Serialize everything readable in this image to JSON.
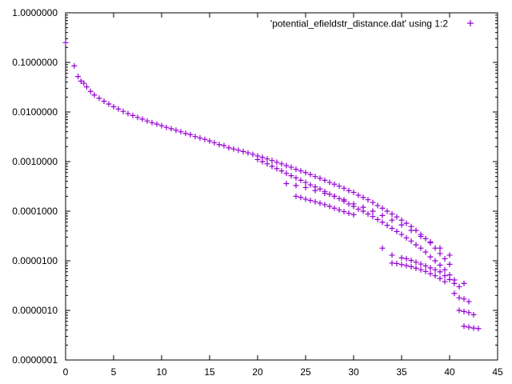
{
  "chart_data": {
    "type": "scatter",
    "title": "",
    "xlabel": "",
    "ylabel": "",
    "xlim": [
      0,
      45
    ],
    "ylim": [
      1e-07,
      1
    ],
    "yscale": "log",
    "grid": false,
    "legend_position": "top-right",
    "x_ticks": [
      "0",
      "5",
      "10",
      "15",
      "20",
      "25",
      "30",
      "35",
      "40",
      "45"
    ],
    "y_ticks": [
      "0.0000001",
      "0.0000010",
      "0.0000100",
      "0.0001000",
      "0.0010000",
      "0.0100000",
      "0.1000000",
      "1.0000000"
    ],
    "marker": "plus",
    "series": [
      {
        "name": "'potential_efieldstr_distance.dat' using 1:2",
        "color": "#9400d3",
        "points": [
          [
            0.0,
            0.25
          ],
          [
            0.9,
            0.085
          ],
          [
            1.3,
            0.052
          ],
          [
            1.6,
            0.042
          ],
          [
            1.9,
            0.038
          ],
          [
            2.2,
            0.032
          ],
          [
            2.6,
            0.026
          ],
          [
            3.0,
            0.022
          ],
          [
            3.5,
            0.019
          ],
          [
            4.0,
            0.0165
          ],
          [
            4.5,
            0.0145
          ],
          [
            5.0,
            0.0128
          ],
          [
            5.5,
            0.0115
          ],
          [
            6.0,
            0.0103
          ],
          [
            6.5,
            0.0093
          ],
          [
            7.0,
            0.0085
          ],
          [
            7.5,
            0.0078
          ],
          [
            8.0,
            0.0072
          ],
          [
            8.5,
            0.0066
          ],
          [
            9.0,
            0.0061
          ],
          [
            9.5,
            0.0057
          ],
          [
            10.0,
            0.0053
          ],
          [
            10.5,
            0.0049
          ],
          [
            11.0,
            0.0046
          ],
          [
            11.5,
            0.0043
          ],
          [
            12.0,
            0.004
          ],
          [
            12.5,
            0.0037
          ],
          [
            13.0,
            0.0035
          ],
          [
            13.5,
            0.0032
          ],
          [
            14.0,
            0.003
          ],
          [
            14.5,
            0.0028
          ],
          [
            15.0,
            0.0026
          ],
          [
            15.5,
            0.0024
          ],
          [
            16.0,
            0.0022
          ],
          [
            16.5,
            0.0021
          ],
          [
            17.0,
            0.0019
          ],
          [
            17.5,
            0.0018
          ],
          [
            18.0,
            0.0017
          ],
          [
            18.5,
            0.0016
          ],
          [
            19.0,
            0.0015
          ],
          [
            19.5,
            0.0014
          ],
          [
            20.0,
            0.0013
          ],
          [
            20.5,
            0.00122
          ],
          [
            21.0,
            0.00113
          ],
          [
            21.5,
            0.00105
          ],
          [
            22.0,
            0.00097
          ],
          [
            22.5,
            0.0009
          ],
          [
            23.0,
            0.00083
          ],
          [
            23.5,
            0.00077
          ],
          [
            24.0,
            0.0007
          ],
          [
            24.5,
            0.00065
          ],
          [
            25.0,
            0.0006
          ],
          [
            25.5,
            0.00055
          ],
          [
            26.0,
            0.0005
          ],
          [
            26.5,
            0.00046
          ],
          [
            27.0,
            0.00042
          ],
          [
            27.5,
            0.00038
          ],
          [
            28.0,
            0.00035
          ],
          [
            28.5,
            0.00032
          ],
          [
            29.0,
            0.00029
          ],
          [
            29.5,
            0.00026
          ],
          [
            30.0,
            0.00024
          ],
          [
            30.5,
            0.00021
          ],
          [
            31.0,
            0.00019
          ],
          [
            31.5,
            0.00017
          ],
          [
            32.0,
            0.00015
          ],
          [
            32.5,
            0.00013
          ],
          [
            33.0,
            0.000115
          ],
          [
            33.5,
            0.0001
          ],
          [
            34.0,
            8.8e-05
          ],
          [
            34.5,
            7.7e-05
          ],
          [
            35.0,
            6.6e-05
          ],
          [
            35.5,
            5.7e-05
          ],
          [
            36.0,
            4.9e-05
          ],
          [
            36.5,
            4.1e-05
          ],
          [
            37.0,
            3.4e-05
          ],
          [
            37.5,
            2.8e-05
          ],
          [
            38.0,
            2.3e-05
          ],
          [
            38.5,
            1.8e-05
          ],
          [
            39.0,
            1.4e-05
          ],
          [
            39.5,
            1.1e-05
          ],
          [
            40.0,
            8.5e-06
          ],
          [
            20.0,
            0.0011
          ],
          [
            20.5,
            0.001
          ],
          [
            21.0,
            0.0009
          ],
          [
            21.5,
            0.0008
          ],
          [
            22.0,
            0.00072
          ],
          [
            22.5,
            0.00065
          ],
          [
            23.0,
            0.00058
          ],
          [
            23.5,
            0.00052
          ],
          [
            24.0,
            0.00047
          ],
          [
            24.5,
            0.00042
          ],
          [
            25.0,
            0.00038
          ],
          [
            25.5,
            0.00034
          ],
          [
            26.0,
            0.00031
          ],
          [
            26.5,
            0.00028
          ],
          [
            27.0,
            0.00025
          ],
          [
            27.5,
            0.00022
          ],
          [
            28.0,
            0.0002
          ],
          [
            28.5,
            0.00018
          ],
          [
            29.0,
            0.00016
          ],
          [
            29.5,
            0.00014
          ],
          [
            30.0,
            0.000125
          ],
          [
            30.5,
            0.00011
          ],
          [
            31.0,
            0.0001
          ],
          [
            31.5,
            8.8e-05
          ],
          [
            32.0,
            7.8e-05
          ],
          [
            32.5,
            6.8e-05
          ],
          [
            33.0,
            6e-05
          ],
          [
            33.5,
            5.2e-05
          ],
          [
            34.0,
            4.5e-05
          ],
          [
            34.5,
            3.9e-05
          ],
          [
            35.0,
            3.4e-05
          ],
          [
            35.5,
            2.9e-05
          ],
          [
            36.0,
            2.5e-05
          ],
          [
            36.5,
            2.1e-05
          ],
          [
            37.0,
            1.8e-05
          ],
          [
            37.5,
            1.5e-05
          ],
          [
            38.0,
            1.2e-05
          ],
          [
            38.5,
            1e-05
          ],
          [
            39.0,
            8.2e-06
          ],
          [
            39.5,
            6.6e-06
          ],
          [
            40.0,
            5.2e-06
          ],
          [
            40.5,
            4.1e-06
          ],
          [
            23.0,
            0.00036
          ],
          [
            24.0,
            0.00033
          ],
          [
            25.0,
            0.0003
          ],
          [
            26.0,
            0.00026
          ],
          [
            27.0,
            0.00023
          ],
          [
            28.0,
            0.0002
          ],
          [
            29.0,
            0.00017
          ],
          [
            30.0,
            0.00014
          ],
          [
            31.0,
            0.00012
          ],
          [
            32.0,
            0.0001
          ],
          [
            33.0,
            8.2e-05
          ],
          [
            34.0,
            6.6e-05
          ],
          [
            35.0,
            5.3e-05
          ],
          [
            36.0,
            4.1e-05
          ],
          [
            37.0,
            3.1e-05
          ],
          [
            38.0,
            2.4e-05
          ],
          [
            39.0,
            1.8e-05
          ],
          [
            40.0,
            1.3e-05
          ],
          [
            24.0,
            0.0002
          ],
          [
            24.5,
            0.00019
          ],
          [
            25.0,
            0.000175
          ],
          [
            25.5,
            0.000165
          ],
          [
            26.0,
            0.000155
          ],
          [
            26.5,
            0.000145
          ],
          [
            27.0,
            0.000135
          ],
          [
            27.5,
            0.000125
          ],
          [
            28.0,
            0.000115
          ],
          [
            28.5,
            0.000106
          ],
          [
            29.0,
            9.8e-05
          ],
          [
            29.5,
            9.1e-05
          ],
          [
            30.0,
            8.5e-05
          ],
          [
            33.0,
            1.8e-05
          ],
          [
            34.0,
            1.3e-05
          ],
          [
            35.0,
            1.15e-05
          ],
          [
            35.5,
            1.1e-05
          ],
          [
            36.0,
            1.02e-05
          ],
          [
            36.5,
            9.4e-06
          ],
          [
            37.0,
            8.6e-06
          ],
          [
            37.5,
            7.9e-06
          ],
          [
            38.0,
            7.2e-06
          ],
          [
            38.5,
            6.6e-06
          ],
          [
            39.0,
            6e-06
          ],
          [
            39.5,
            5e-06
          ],
          [
            40.0,
            4.2e-06
          ],
          [
            34.0,
            9e-06
          ],
          [
            34.5,
            8.8e-06
          ],
          [
            35.0,
            8.4e-06
          ],
          [
            35.5,
            8e-06
          ],
          [
            36.0,
            7.6e-06
          ],
          [
            36.5,
            7.1e-06
          ],
          [
            37.0,
            6.6e-06
          ],
          [
            37.5,
            6.1e-06
          ],
          [
            38.0,
            5.5e-06
          ],
          [
            38.5,
            5e-06
          ],
          [
            39.0,
            4.4e-06
          ],
          [
            39.5,
            3.8e-06
          ],
          [
            40.5,
            3.5e-06
          ],
          [
            40.5,
            2.2e-06
          ],
          [
            41.0,
            3e-06
          ],
          [
            41.0,
            1.8e-06
          ],
          [
            41.0,
            1e-06
          ],
          [
            41.5,
            1.7e-06
          ],
          [
            41.5,
            3.5e-06
          ],
          [
            41.5,
            9.5e-07
          ],
          [
            42.0,
            1.5e-06
          ],
          [
            42.0,
            9e-07
          ],
          [
            41.5,
            4.8e-07
          ],
          [
            42.0,
            4.6e-07
          ],
          [
            42.5,
            4.4e-07
          ],
          [
            43.0,
            4.3e-07
          ],
          [
            42.5,
            8.2e-07
          ]
        ]
      }
    ]
  }
}
